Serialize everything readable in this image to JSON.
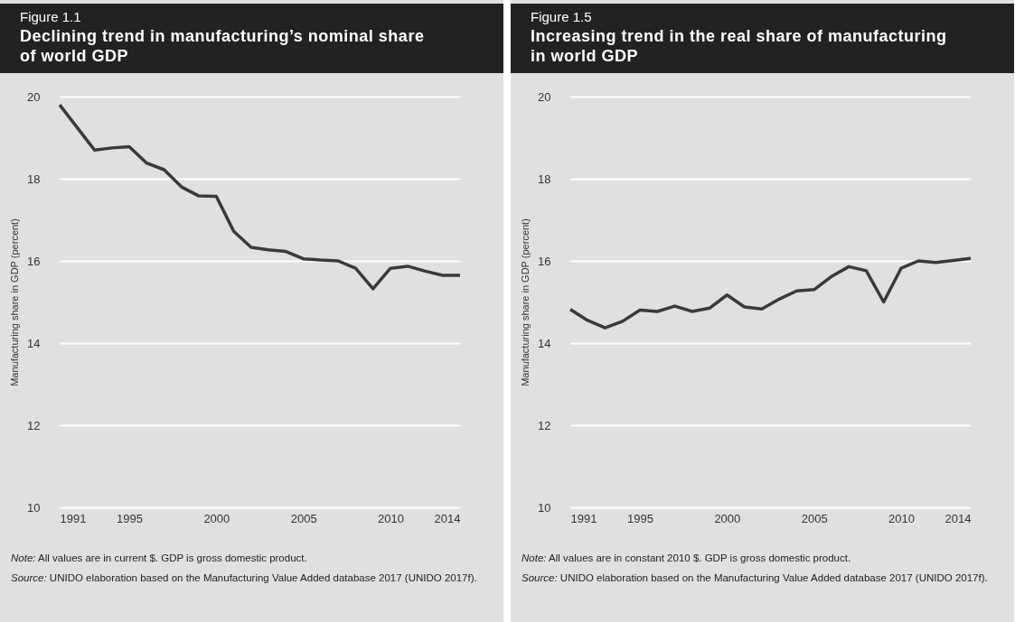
{
  "chart_data": [
    {
      "type": "line",
      "subtitle": "Figure 1.1",
      "title": "Declining trend in manufacturing’s nominal share of world GDP",
      "ylabel": "Manufacturing share in GDP (percent)",
      "x": [
        1991,
        1992,
        1993,
        1994,
        1995,
        1996,
        1997,
        1998,
        1999,
        2000,
        2001,
        2002,
        2003,
        2004,
        2005,
        2006,
        2007,
        2008,
        2009,
        2010,
        2011,
        2012,
        2013,
        2014
      ],
      "series": [
        {
          "color": "#3a3a3a",
          "values": [
            19.8,
            19.25,
            18.7,
            18.75,
            18.78,
            18.38,
            18.22,
            17.8,
            17.58,
            17.57,
            16.72,
            16.33,
            16.27,
            16.23,
            16.05,
            16.02,
            16.0,
            15.82,
            15.32,
            15.82,
            15.87,
            15.75,
            15.65,
            15.65
          ]
        }
      ],
      "xlim": [
        1991,
        2014
      ],
      "xticks": [
        1991,
        1995,
        2000,
        2005,
        2010,
        2014
      ],
      "ylim": [
        10,
        20
      ],
      "yticks": [
        10,
        12,
        14,
        16,
        18,
        20
      ],
      "grid": "y",
      "annotations": [
        "Note: All values are in current $. GDP is gross domestic product.",
        "Source: UNIDO elaboration based on the Manufacturing Value Added database 2017 (UNIDO 2017f)."
      ]
    },
    {
      "type": "line",
      "subtitle": "Figure 1.5",
      "title": "Increasing trend in the real share of manufacturing in world GDP",
      "ylabel": "Manufacturing share in GDP (percent)",
      "x": [
        1991,
        1992,
        1993,
        1994,
        1995,
        1996,
        1997,
        1998,
        1999,
        2000,
        2001,
        2002,
        2003,
        2004,
        2005,
        2006,
        2007,
        2008,
        2009,
        2010,
        2011,
        2012,
        2013,
        2014
      ],
      "series": [
        {
          "color": "#3a3a3a",
          "values": [
            14.82,
            14.55,
            14.37,
            14.53,
            14.8,
            14.77,
            14.9,
            14.77,
            14.85,
            15.17,
            14.88,
            14.83,
            15.07,
            15.27,
            15.3,
            15.62,
            15.86,
            15.76,
            15.0,
            15.82,
            16.0,
            15.96,
            16.01,
            16.06
          ]
        }
      ],
      "xlim": [
        1991,
        2014
      ],
      "xticks": [
        1991,
        1995,
        2000,
        2005,
        2010,
        2014
      ],
      "ylim": [
        10,
        20
      ],
      "yticks": [
        10,
        12,
        14,
        16,
        18,
        20
      ],
      "grid": "y",
      "annotations": [
        "Note: All values are in constant 2010 $. GDP is gross domestic product.",
        "Source: UNIDO elaboration based on the Manufacturing Value Added database 2017 (UNIDO 2017f)."
      ]
    }
  ]
}
